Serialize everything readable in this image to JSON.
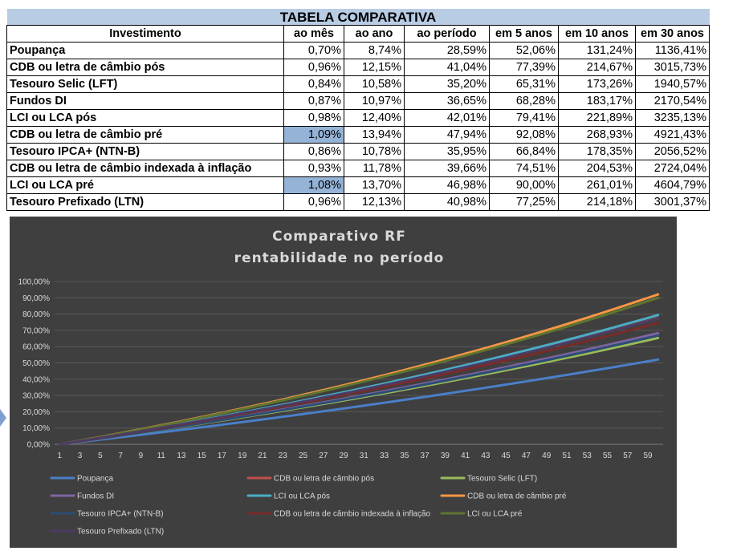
{
  "table": {
    "title": "TABELA COMPARATIVA",
    "headers": [
      "Investimento",
      "ao mês",
      "ao ano",
      "ao período",
      "em 5 anos",
      "em 10 anos",
      "em 30 anos"
    ],
    "rows": [
      {
        "name": "Poupança",
        "cells": [
          "0,70%",
          "8,74%",
          "28,59%",
          "52,06%",
          "131,24%",
          "1136,41%"
        ],
        "highlight": false
      },
      {
        "name": "CDB ou letra de câmbio pós",
        "cells": [
          "0,96%",
          "12,15%",
          "41,04%",
          "77,39%",
          "214,67%",
          "3015,73%"
        ],
        "highlight": false
      },
      {
        "name": "Tesouro Selic (LFT)",
        "cells": [
          "0,84%",
          "10,58%",
          "35,20%",
          "65,31%",
          "173,26%",
          "1940,57%"
        ],
        "highlight": false
      },
      {
        "name": "Fundos DI",
        "cells": [
          "0,87%",
          "10,97%",
          "36,65%",
          "68,28%",
          "183,17%",
          "2170,54%"
        ],
        "highlight": false
      },
      {
        "name": "LCI ou LCA pós",
        "cells": [
          "0,98%",
          "12,40%",
          "42,01%",
          "79,41%",
          "221,89%",
          "3235,13%"
        ],
        "highlight": false
      },
      {
        "name": "CDB ou letra de câmbio pré",
        "cells": [
          "1,09%",
          "13,94%",
          "47,94%",
          "92,08%",
          "268,93%",
          "4921,43%"
        ],
        "highlight": true
      },
      {
        "name": "Tesouro IPCA+ (NTN-B)",
        "cells": [
          "0,86%",
          "10,78%",
          "35,95%",
          "66,84%",
          "178,35%",
          "2056,52%"
        ],
        "highlight": false
      },
      {
        "name": "CDB ou letra de câmbio indexada à inflação",
        "cells": [
          "0,93%",
          "11,78%",
          "39,66%",
          "74,51%",
          "204,53%",
          "2724,04%"
        ],
        "highlight": false
      },
      {
        "name": "LCI ou LCA pré",
        "cells": [
          "1,08%",
          "13,70%",
          "46,98%",
          "90,00%",
          "261,01%",
          "4604,79%"
        ],
        "highlight": true
      },
      {
        "name": "Tesouro Prefixado (LTN)",
        "cells": [
          "0,96%",
          "12,13%",
          "40,98%",
          "77,25%",
          "214,18%",
          "3001,37%"
        ],
        "highlight": false
      }
    ]
  },
  "chart_data": {
    "type": "line",
    "title": "Comparativo RF",
    "subtitle": "rentabilidade no período",
    "x_start": 1,
    "x_end": 60,
    "x_tick_labels": [
      "1",
      "3",
      "5",
      "7",
      "9",
      "11",
      "13",
      "15",
      "17",
      "19",
      "21",
      "23",
      "25",
      "27",
      "29",
      "31",
      "33",
      "35",
      "37",
      "39",
      "41",
      "43",
      "45",
      "47",
      "49",
      "51",
      "53",
      "55",
      "57",
      "59"
    ],
    "y_tick_labels": [
      "0,00%",
      "10,00%",
      "20,00%",
      "30,00%",
      "40,00%",
      "50,00%",
      "60,00%",
      "70,00%",
      "80,00%",
      "90,00%",
      "100,00%"
    ],
    "ylim": [
      0,
      100
    ],
    "grid": true,
    "legend_position": "bottom",
    "background_color": "#3f3f3f",
    "text_color": "#d9d9d9",
    "gridline_color": "#595959",
    "series": [
      {
        "name": "Poupança",
        "color": "#4a7fc9",
        "monthly_rate": 0.7,
        "end_value": 52.06
      },
      {
        "name": "CDB ou letra de câmbio pós",
        "color": "#c0504d",
        "monthly_rate": 0.96,
        "end_value": 77.39
      },
      {
        "name": "Tesouro Selic (LFT)",
        "color": "#9bbb59",
        "monthly_rate": 0.84,
        "end_value": 65.31
      },
      {
        "name": "Fundos DI",
        "color": "#8064a2",
        "monthly_rate": 0.87,
        "end_value": 68.28
      },
      {
        "name": "LCI ou LCA pós",
        "color": "#4bacc6",
        "monthly_rate": 0.98,
        "end_value": 79.41
      },
      {
        "name": "CDB ou letra de câmbio pré",
        "color": "#f79646",
        "monthly_rate": 1.09,
        "end_value": 92.08
      },
      {
        "name": "Tesouro IPCA+ (NTN-B)",
        "color": "#2c4d75",
        "monthly_rate": 0.86,
        "end_value": 66.84
      },
      {
        "name": "CDB ou letra de câmbio indexada à inflação",
        "color": "#772c2a",
        "monthly_rate": 0.93,
        "end_value": 74.51
      },
      {
        "name": "LCI ou LCA pré",
        "color": "#5f7530",
        "monthly_rate": 1.08,
        "end_value": 90.0
      },
      {
        "name": "Tesouro Prefixado (LTN)",
        "color": "#4d3b62",
        "monthly_rate": 0.96,
        "end_value": 77.25
      }
    ]
  }
}
